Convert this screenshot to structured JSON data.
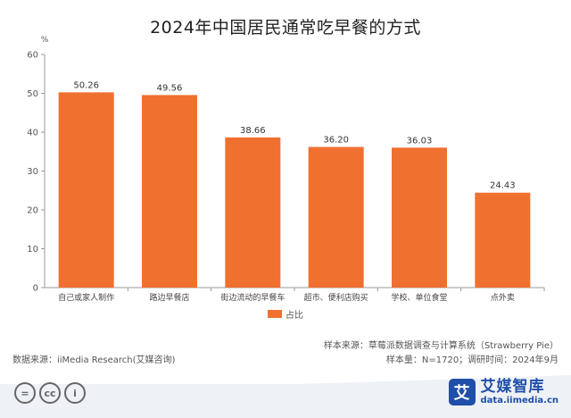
{
  "title": "2024年中国居民通常吃早餐的方式",
  "legend": {
    "label": "占比",
    "color": "#f07030"
  },
  "source_left": "数据来源：iiMedia Research(艾媒咨询)",
  "source_right_line1": "样本来源：草莓派数据调查与计算系统（Strawberry Pie）",
  "source_right_line2": "样本量：N=1720；调研时间：2024年9月",
  "license_icons": [
    "equals-icon",
    "cc-icon",
    "person-icon"
  ],
  "license_glyphs": [
    "=",
    "cc",
    "i"
  ],
  "brand": {
    "logo_char": "艾",
    "name": "艾媒智库",
    "url": "data.iimedia.cn"
  },
  "chart_data": {
    "type": "bar",
    "ylabel": "%",
    "ylim": [
      0,
      60
    ],
    "yticks": [
      0,
      10,
      20,
      30,
      40,
      50,
      60
    ],
    "grid": false,
    "categories": [
      "自己或家人制作",
      "路边早餐店",
      "街边流动的早餐车",
      "超市、便利店购买",
      "学校、单位食堂",
      "点外卖"
    ],
    "series": [
      {
        "name": "占比",
        "values": [
          50.26,
          49.56,
          38.66,
          36.2,
          36.03,
          24.43
        ],
        "labels": [
          "50.26",
          "49.56",
          "38.66",
          "36.20",
          "36.03",
          "24.43"
        ]
      }
    ],
    "bar_color": "#f07030"
  }
}
